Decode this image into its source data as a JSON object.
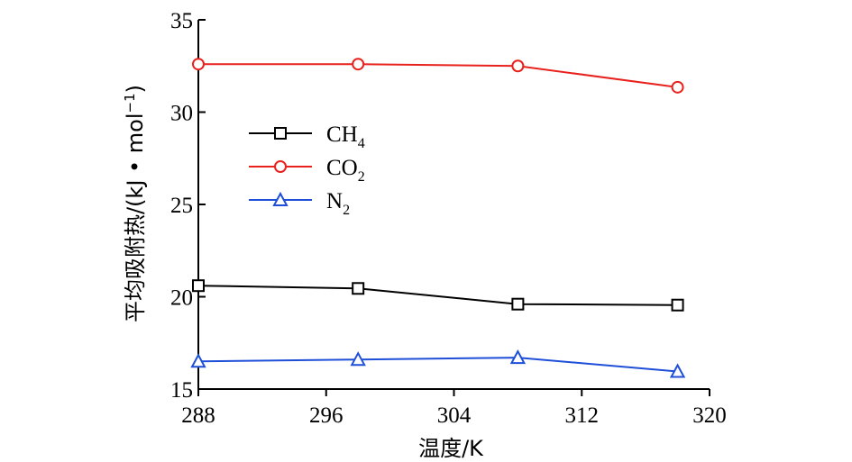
{
  "chart_data": {
    "type": "line",
    "xlabel": "温度/K",
    "ylabel": "平均吸附热/(kJ • mol",
    "ylabel_sup": "−1",
    "ylabel_close": ")",
    "xlim": [
      288,
      320
    ],
    "ylim": [
      15,
      35
    ],
    "xticks": [
      288,
      296,
      304,
      312,
      320
    ],
    "yticks": [
      15,
      20,
      25,
      30,
      35
    ],
    "x": [
      288,
      298,
      308,
      318
    ],
    "series": [
      {
        "name": "CH4",
        "name_base": "CH",
        "name_sub": "4",
        "color": "#000000",
        "marker": "square",
        "values": [
          20.6,
          20.45,
          19.6,
          19.55
        ]
      },
      {
        "name": "CO2",
        "name_base": "CO",
        "name_sub": "2",
        "color": "#e8211d",
        "marker": "circle",
        "values": [
          32.6,
          32.6,
          32.5,
          31.35
        ]
      },
      {
        "name": "N2",
        "name_base": "N",
        "name_sub": "2",
        "color": "#1f4fd8",
        "marker": "triangle",
        "values": [
          16.5,
          16.6,
          16.7,
          15.95
        ]
      }
    ],
    "legend": "upper-left, inside",
    "grid": false
  }
}
